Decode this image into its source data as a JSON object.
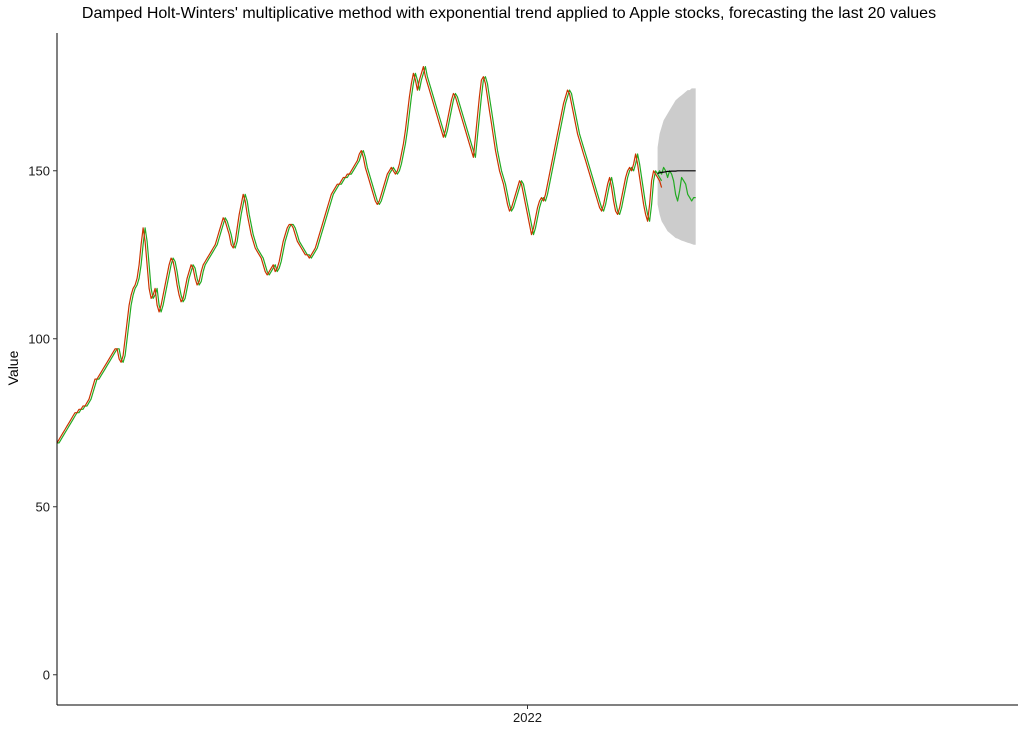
{
  "chart_data": {
    "type": "line",
    "title": "Damped Holt-Winters' multiplicative method with exponential trend applied to Apple stocks, forecasting the last 20 values",
    "xlabel": "",
    "ylabel": "Value",
    "ylim": [
      -9,
      191
    ],
    "xlim": [
      0,
      480
    ],
    "grid": false,
    "legend": "none",
    "y_ticks": [
      0,
      50,
      100,
      150
    ],
    "x_ticks": [
      {
        "x": 235,
        "label": "2022"
      }
    ],
    "colors": {
      "actual": "#cc3300",
      "fitted": "#22aa22",
      "forecast": "#000000",
      "interval": "#cccccc"
    },
    "series": [
      {
        "role": "actual",
        "x_start": 0,
        "x_step": 1,
        "values": [
          69,
          70,
          71,
          72,
          73,
          74,
          75,
          76,
          77,
          78,
          78,
          79,
          79,
          80,
          80,
          81,
          82,
          84,
          86,
          88,
          88,
          89,
          90,
          91,
          92,
          93,
          94,
          95,
          96,
          97,
          97,
          94,
          93,
          95,
          100,
          105,
          110,
          113,
          115,
          116,
          118,
          122,
          128,
          133,
          129,
          122,
          115,
          112,
          113,
          115,
          110,
          108,
          110,
          113,
          116,
          119,
          122,
          124,
          123,
          120,
          116,
          113,
          111,
          112,
          115,
          118,
          120,
          122,
          121,
          118,
          116,
          117,
          120,
          122,
          123,
          124,
          125,
          126,
          127,
          128,
          130,
          132,
          134,
          136,
          135,
          133,
          131,
          128,
          127,
          129,
          133,
          137,
          140,
          143,
          141,
          137,
          134,
          131,
          129,
          127,
          126,
          125,
          124,
          122,
          120,
          119,
          120,
          121,
          122,
          120,
          121,
          123,
          126,
          129,
          131,
          133,
          134,
          134,
          133,
          131,
          129,
          128,
          127,
          126,
          125,
          125,
          124,
          125,
          126,
          127,
          129,
          131,
          133,
          135,
          137,
          139,
          141,
          143,
          144,
          145,
          146,
          146,
          147,
          148,
          148,
          149,
          149,
          150,
          151,
          152,
          153,
          155,
          156,
          154,
          151,
          149,
          147,
          145,
          143,
          141,
          140,
          141,
          143,
          145,
          147,
          149,
          150,
          151,
          150,
          149,
          150,
          152,
          155,
          158,
          162,
          167,
          172,
          176,
          179,
          177,
          174,
          177,
          179,
          181,
          178,
          176,
          174,
          172,
          170,
          168,
          166,
          164,
          162,
          160,
          162,
          165,
          168,
          171,
          173,
          172,
          170,
          168,
          166,
          164,
          162,
          160,
          158,
          156,
          154,
          160,
          166,
          172,
          177,
          178,
          176,
          172,
          168,
          164,
          160,
          156,
          153,
          150,
          148,
          146,
          143,
          140,
          138,
          139,
          141,
          143,
          145,
          147,
          146,
          143,
          140,
          137,
          134,
          131,
          133,
          136,
          139,
          141,
          142,
          141,
          143,
          146,
          149,
          152,
          155,
          158,
          161,
          164,
          167,
          170,
          172,
          174,
          173,
          170,
          167,
          164,
          161,
          159,
          157,
          155,
          153,
          151,
          149,
          147,
          145,
          143,
          141,
          139,
          138,
          140,
          143,
          146,
          148,
          145,
          141,
          138,
          137,
          139,
          142,
          145,
          148,
          150,
          151,
          150,
          152,
          155,
          152,
          148,
          144,
          140,
          137,
          135,
          140,
          147,
          150,
          149,
          148,
          147,
          145
        ]
      },
      {
        "role": "fitted",
        "x_start": 0,
        "x_step": 1,
        "values": [
          69,
          69,
          70,
          71,
          72,
          73,
          74,
          75,
          76,
          77,
          78,
          78,
          79,
          79,
          80,
          80,
          81,
          82,
          84,
          86,
          88,
          88,
          89,
          90,
          91,
          92,
          93,
          94,
          95,
          96,
          97,
          97,
          94,
          93,
          95,
          100,
          105,
          110,
          113,
          115,
          116,
          118,
          122,
          128,
          133,
          129,
          122,
          115,
          112,
          113,
          115,
          110,
          108,
          110,
          113,
          116,
          119,
          122,
          124,
          123,
          120,
          116,
          113,
          111,
          112,
          115,
          118,
          120,
          122,
          121,
          118,
          116,
          117,
          120,
          122,
          123,
          124,
          125,
          126,
          127,
          128,
          130,
          132,
          134,
          136,
          135,
          133,
          131,
          128,
          127,
          129,
          133,
          137,
          140,
          143,
          141,
          137,
          134,
          131,
          129,
          127,
          126,
          125,
          124,
          122,
          120,
          119,
          120,
          121,
          122,
          120,
          121,
          123,
          126,
          129,
          131,
          133,
          134,
          134,
          133,
          131,
          129,
          128,
          127,
          126,
          125,
          125,
          124,
          125,
          126,
          127,
          129,
          131,
          133,
          135,
          137,
          139,
          141,
          143,
          144,
          145,
          146,
          146,
          147,
          148,
          148,
          149,
          149,
          150,
          151,
          152,
          153,
          155,
          156,
          154,
          151,
          149,
          147,
          145,
          143,
          141,
          140,
          141,
          143,
          145,
          147,
          149,
          150,
          151,
          150,
          149,
          150,
          152,
          155,
          158,
          162,
          167,
          172,
          176,
          179,
          177,
          174,
          177,
          179,
          181,
          178,
          176,
          174,
          172,
          170,
          168,
          166,
          164,
          162,
          160,
          162,
          165,
          168,
          171,
          173,
          172,
          170,
          168,
          166,
          164,
          162,
          160,
          158,
          156,
          154,
          160,
          166,
          172,
          177,
          178,
          176,
          172,
          168,
          164,
          160,
          156,
          153,
          150,
          148,
          146,
          143,
          140,
          138,
          139,
          141,
          143,
          145,
          147,
          146,
          143,
          140,
          137,
          134,
          131,
          133,
          136,
          139,
          141,
          142,
          141,
          143,
          146,
          149,
          152,
          155,
          158,
          161,
          164,
          167,
          170,
          172,
          174,
          173,
          170,
          167,
          164,
          161,
          159,
          157,
          155,
          153,
          151,
          149,
          147,
          145,
          143,
          141,
          139,
          138,
          140,
          143,
          146,
          148,
          145,
          141,
          138,
          137,
          139,
          142,
          145,
          148,
          150,
          151,
          150,
          152,
          155,
          152,
          148,
          144,
          140,
          137,
          135,
          140,
          147,
          150,
          149,
          148,
          147
        ]
      },
      {
        "role": "test-actual",
        "x_start": 300,
        "x_step": 1,
        "values": [
          149,
          150,
          149,
          151,
          150,
          148,
          150,
          149,
          147,
          143,
          141,
          144,
          148,
          147,
          146,
          143,
          142,
          141,
          142,
          142
        ]
      },
      {
        "role": "forecast",
        "x_start": 300,
        "x_step": 1,
        "values": [
          149.2,
          149.4,
          149.5,
          149.6,
          149.7,
          149.8,
          149.8,
          149.9,
          149.9,
          149.9,
          150,
          150,
          150,
          150,
          150,
          150,
          150,
          150,
          150,
          150
        ]
      },
      {
        "role": "interval",
        "x_start": 300,
        "x_step": 1,
        "lower": [
          140,
          137,
          135,
          134,
          133,
          132,
          131.5,
          131,
          130.5,
          130,
          129.8,
          129.5,
          129.2,
          129,
          128.8,
          128.6,
          128.4,
          128.2,
          128,
          128
        ],
        "upper": [
          157,
          161,
          163,
          165,
          166,
          167,
          168,
          169,
          170,
          171,
          171.5,
          172,
          172.5,
          173,
          173.5,
          174,
          174,
          174.5,
          174.5,
          174.5
        ]
      }
    ]
  }
}
